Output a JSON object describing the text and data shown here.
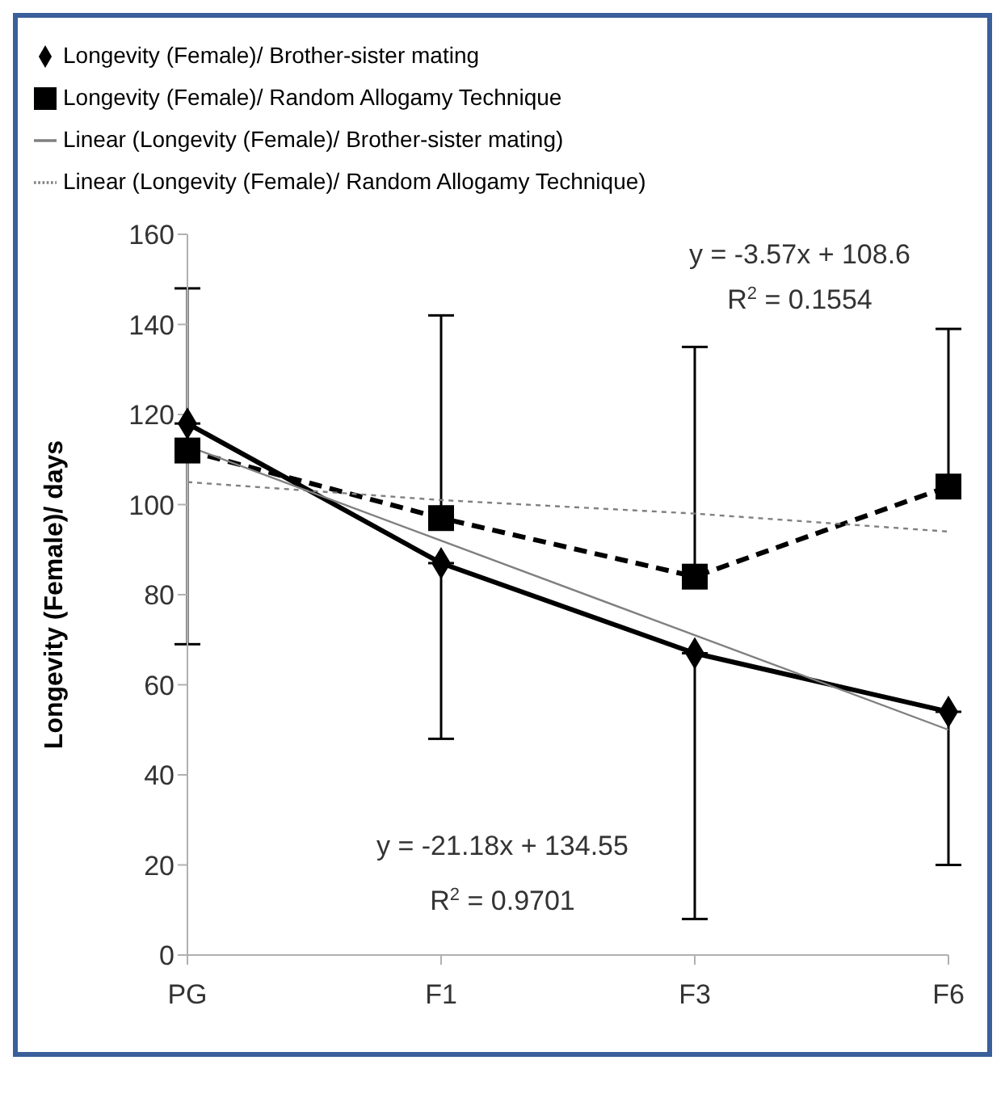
{
  "chart_data": {
    "type": "line",
    "ylabel": "Longevity (Female)/ days",
    "categories": [
      "PG",
      "F1",
      "F3",
      "F6"
    ],
    "ylim": [
      0,
      160
    ],
    "yticks": [
      0,
      20,
      40,
      60,
      80,
      100,
      120,
      140,
      160
    ],
    "grid": false,
    "legend": "top",
    "series": [
      {
        "name": "Longevity (Female)/  Brother-sister mating",
        "color": "#000000",
        "values": [
          118,
          87,
          67,
          54
        ],
        "marker": "diamond",
        "line_style": "solid",
        "errors": [
          [
            69,
            118
          ],
          [
            48,
            87
          ],
          [
            8,
            67
          ],
          [
            20,
            54
          ]
        ]
      },
      {
        "name": "Longevity (Female)/  Random Allogamy Technique",
        "color": "#000000",
        "values": [
          112,
          97,
          84,
          104
        ],
        "marker": "square",
        "line_style": "dashed",
        "errors": [
          [
            112,
            148
          ],
          [
            97,
            142
          ],
          [
            84,
            135
          ],
          [
            104,
            139
          ]
        ]
      },
      {
        "name": "Linear (Longevity (Female)/  Brother-sister mating)",
        "color": "#808080",
        "values": [
          113,
          92,
          71,
          50
        ],
        "marker": "none",
        "line_style": "solid"
      },
      {
        "name": "Linear (Longevity (Female)/  Random Allogamy Technique)",
        "color": "#808080",
        "values": [
          105,
          101,
          98,
          94
        ],
        "marker": "none",
        "line_style": "dotted"
      }
    ],
    "annotations": [
      "y = -3.57x + 108.6",
      "R$^{2}$ = 0.1554",
      "y = -21.18x + 134.55",
      "R$^{2}$ = 0.9701"
    ]
  }
}
